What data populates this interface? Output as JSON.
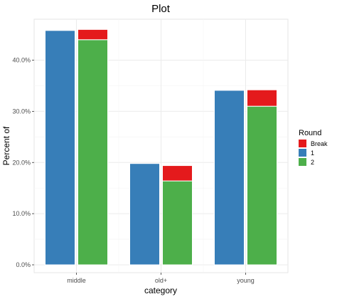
{
  "chart_data": {
    "type": "bar",
    "title": "Plot",
    "xlabel": "category",
    "ylabel": "Percent of",
    "categories": [
      "middle",
      "old+",
      "young"
    ],
    "ylim": [
      0,
      0.48
    ],
    "yticks": [
      0,
      0.1,
      0.2,
      0.3,
      0.4
    ],
    "ytick_labels": [
      "0.0%",
      "10.0%",
      "20.0%",
      "30.0%",
      "40.0%"
    ],
    "grid": true,
    "legend": {
      "title": "Round",
      "position": "right",
      "entries": [
        {
          "label": "Break",
          "color": "#e41a1c"
        },
        {
          "label": "1",
          "color": "#377eb8"
        },
        {
          "label": "2",
          "color": "#4daf4a"
        }
      ]
    },
    "bars": [
      {
        "category": "middle",
        "group": "1",
        "segments": [
          {
            "series": "1",
            "value": 0.458
          }
        ]
      },
      {
        "category": "middle",
        "group": "2",
        "segments": [
          {
            "series": "2",
            "value": 0.44
          },
          {
            "series": "Break",
            "value": 0.02
          }
        ]
      },
      {
        "category": "old+",
        "group": "1",
        "segments": [
          {
            "series": "1",
            "value": 0.198
          }
        ]
      },
      {
        "category": "old+",
        "group": "2",
        "segments": [
          {
            "series": "2",
            "value": 0.164
          },
          {
            "series": "Break",
            "value": 0.03
          }
        ]
      },
      {
        "category": "young",
        "group": "1",
        "segments": [
          {
            "series": "1",
            "value": 0.341
          }
        ]
      },
      {
        "category": "young",
        "group": "2",
        "segments": [
          {
            "series": "2",
            "value": 0.31
          },
          {
            "series": "Break",
            "value": 0.032
          }
        ]
      }
    ],
    "colors": {
      "Break": "#e41a1c",
      "1": "#377eb8",
      "2": "#4daf4a"
    }
  }
}
